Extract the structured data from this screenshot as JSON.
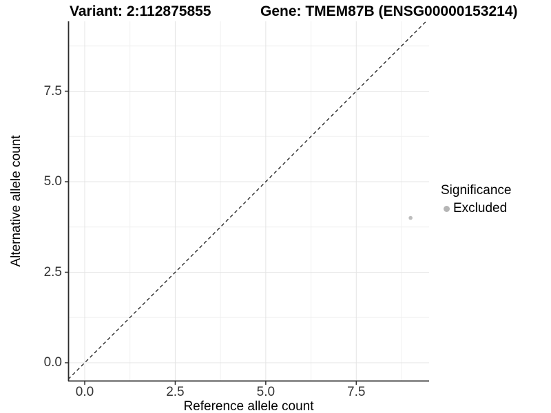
{
  "figure": {
    "title_left": "Variant: 2:112875855",
    "title_right": "Gene: TMEM87B (ENSG00000153214)"
  },
  "chart_data": {
    "type": "scatter",
    "xlabel": "Reference allele count",
    "ylabel": "Alternative allele count",
    "xlim": [
      -0.5,
      9.5
    ],
    "ylim": [
      -0.49,
      9.42
    ],
    "x_ticks": {
      "values": [
        0,
        2.5,
        5,
        7.5
      ],
      "labels": [
        "0.0",
        "2.5",
        "5.0",
        "7.5"
      ]
    },
    "y_ticks": {
      "values": [
        0,
        2.5,
        5,
        7.5
      ],
      "labels": [
        "0.0",
        "2.5",
        "5.0",
        "7.5"
      ]
    },
    "minor_x_ticks": [
      1.25,
      3.75,
      6.25,
      8.75
    ],
    "minor_y_ticks": [
      1.25,
      3.75,
      6.25,
      8.75
    ],
    "grid": true,
    "points": [
      {
        "x": 9,
        "y": 4,
        "significance": "Excluded"
      }
    ],
    "identity_line": {
      "slope": 1,
      "intercept": 0,
      "style": "dashed"
    },
    "legend": {
      "position": "right",
      "title": "Significance",
      "items": [
        {
          "label": "Excluded",
          "color": "#bdbdbd"
        }
      ]
    },
    "colors": {
      "point": "#bdbdbd",
      "legend_key": "#b5b5b5",
      "grid_major": "#e4e4e4",
      "grid_minor": "#f0f0f0",
      "axis_line": "#2b2b2b",
      "tick_mark": "#333333",
      "tick_text": "#333333",
      "identity_line": "#1a1a1a"
    }
  }
}
